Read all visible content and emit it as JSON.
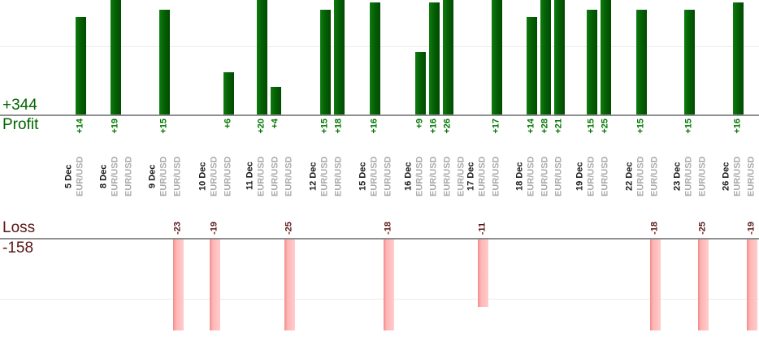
{
  "summary": {
    "profit_total": "+344",
    "profit_label": "Profit",
    "loss_label": "Loss",
    "loss_total": "-158"
  },
  "chart_data": {
    "type": "bar",
    "title": "",
    "description": "Daily trade profit/loss per instrument; green bars above Profit axis, pink bars below Loss axis; bars clipped by image crop at top and bottom",
    "days": [
      {
        "date": "5 Dec",
        "trades": [
          {
            "instrument": "EUR/USD",
            "value": 14
          }
        ]
      },
      {
        "date": "8 Dec",
        "trades": [
          {
            "instrument": "EUR/USD",
            "value": 19
          },
          {
            "instrument": "EUR/USD",
            "value": 0
          }
        ]
      },
      {
        "date": "9 Dec",
        "trades": [
          {
            "instrument": "EUR/USD",
            "value": 15
          },
          {
            "instrument": "EUR/USD",
            "value": -23
          }
        ]
      },
      {
        "date": "10 Dec",
        "trades": [
          {
            "instrument": "EUR/USD",
            "value": -19
          },
          {
            "instrument": "EUR/USD",
            "value": 6
          }
        ]
      },
      {
        "date": "11 Dec",
        "trades": [
          {
            "instrument": "EUR/USD",
            "value": 20
          },
          {
            "instrument": "EUR/USD",
            "value": 4
          },
          {
            "instrument": "EUR/USD",
            "value": -25
          }
        ]
      },
      {
        "date": "12 Dec",
        "trades": [
          {
            "instrument": "EUR/USD",
            "value": 15
          },
          {
            "instrument": "EUR/USD",
            "value": 18
          }
        ]
      },
      {
        "date": "15 Dec",
        "trades": [
          {
            "instrument": "EUR/USD",
            "value": 16
          },
          {
            "instrument": "EUR/USD",
            "value": -18
          }
        ]
      },
      {
        "date": "16 Dec",
        "trades": [
          {
            "instrument": "EUR/USD",
            "value": 9
          },
          {
            "instrument": "EUR/USD",
            "value": 16
          },
          {
            "instrument": "EUR/USD",
            "value": 26
          },
          {
            "instrument": "EUR/USD",
            "value": 0
          }
        ]
      },
      {
        "date": "17 Dec",
        "trades": [
          {
            "instrument": "EUR/USD",
            "value": -11
          },
          {
            "instrument": "EUR/USD",
            "value": 17
          }
        ]
      },
      {
        "date": "18 Dec",
        "trades": [
          {
            "instrument": "EUR/USD",
            "value": 14
          },
          {
            "instrument": "EUR/USD",
            "value": 28
          },
          {
            "instrument": "EUR/USD",
            "value": 21
          }
        ]
      },
      {
        "date": "19 Dec",
        "trades": [
          {
            "instrument": "EUR/USD",
            "value": 15
          },
          {
            "instrument": "EUR/USD",
            "value": 25
          }
        ]
      },
      {
        "date": "22 Dec",
        "trades": [
          {
            "instrument": "EUR/USD",
            "value": 15
          },
          {
            "instrument": "EUR/USD",
            "value": -18
          }
        ]
      },
      {
        "date": "23 Dec",
        "trades": [
          {
            "instrument": "EUR/USD",
            "value": 15
          },
          {
            "instrument": "EUR/USD",
            "value": -25
          }
        ]
      },
      {
        "date": "26 Dec",
        "trades": [
          {
            "instrument": "EUR/USD",
            "value": 16
          },
          {
            "instrument": "EUR/USD",
            "value": -19
          }
        ]
      }
    ],
    "profit_axis": {
      "label": "Profit",
      "total": "+344",
      "gridlines": [
        10
      ],
      "visible_range": [
        0,
        16.4
      ]
    },
    "loss_axis": {
      "label": "Loss",
      "total": "-158",
      "gridlines": [
        -10
      ],
      "visible_range": [
        0,
        -14.9
      ]
    },
    "legend_position": "none",
    "grid": true
  },
  "colors": {
    "profit_bar_light": "#0e7c0e",
    "profit_bar_dark": "#024a02",
    "loss_bar_edge": "#f08c8c",
    "loss_bar_light": "#ffcccc",
    "profit_text": "#006400",
    "loss_text": "#5c1616",
    "profit_value_text": "#007500",
    "date_text": "#1a1a1a",
    "instrument_text": "#ababab",
    "axis_line": "#8f8f8f",
    "gridline": "#ebebeb",
    "background": "#ffffff"
  }
}
